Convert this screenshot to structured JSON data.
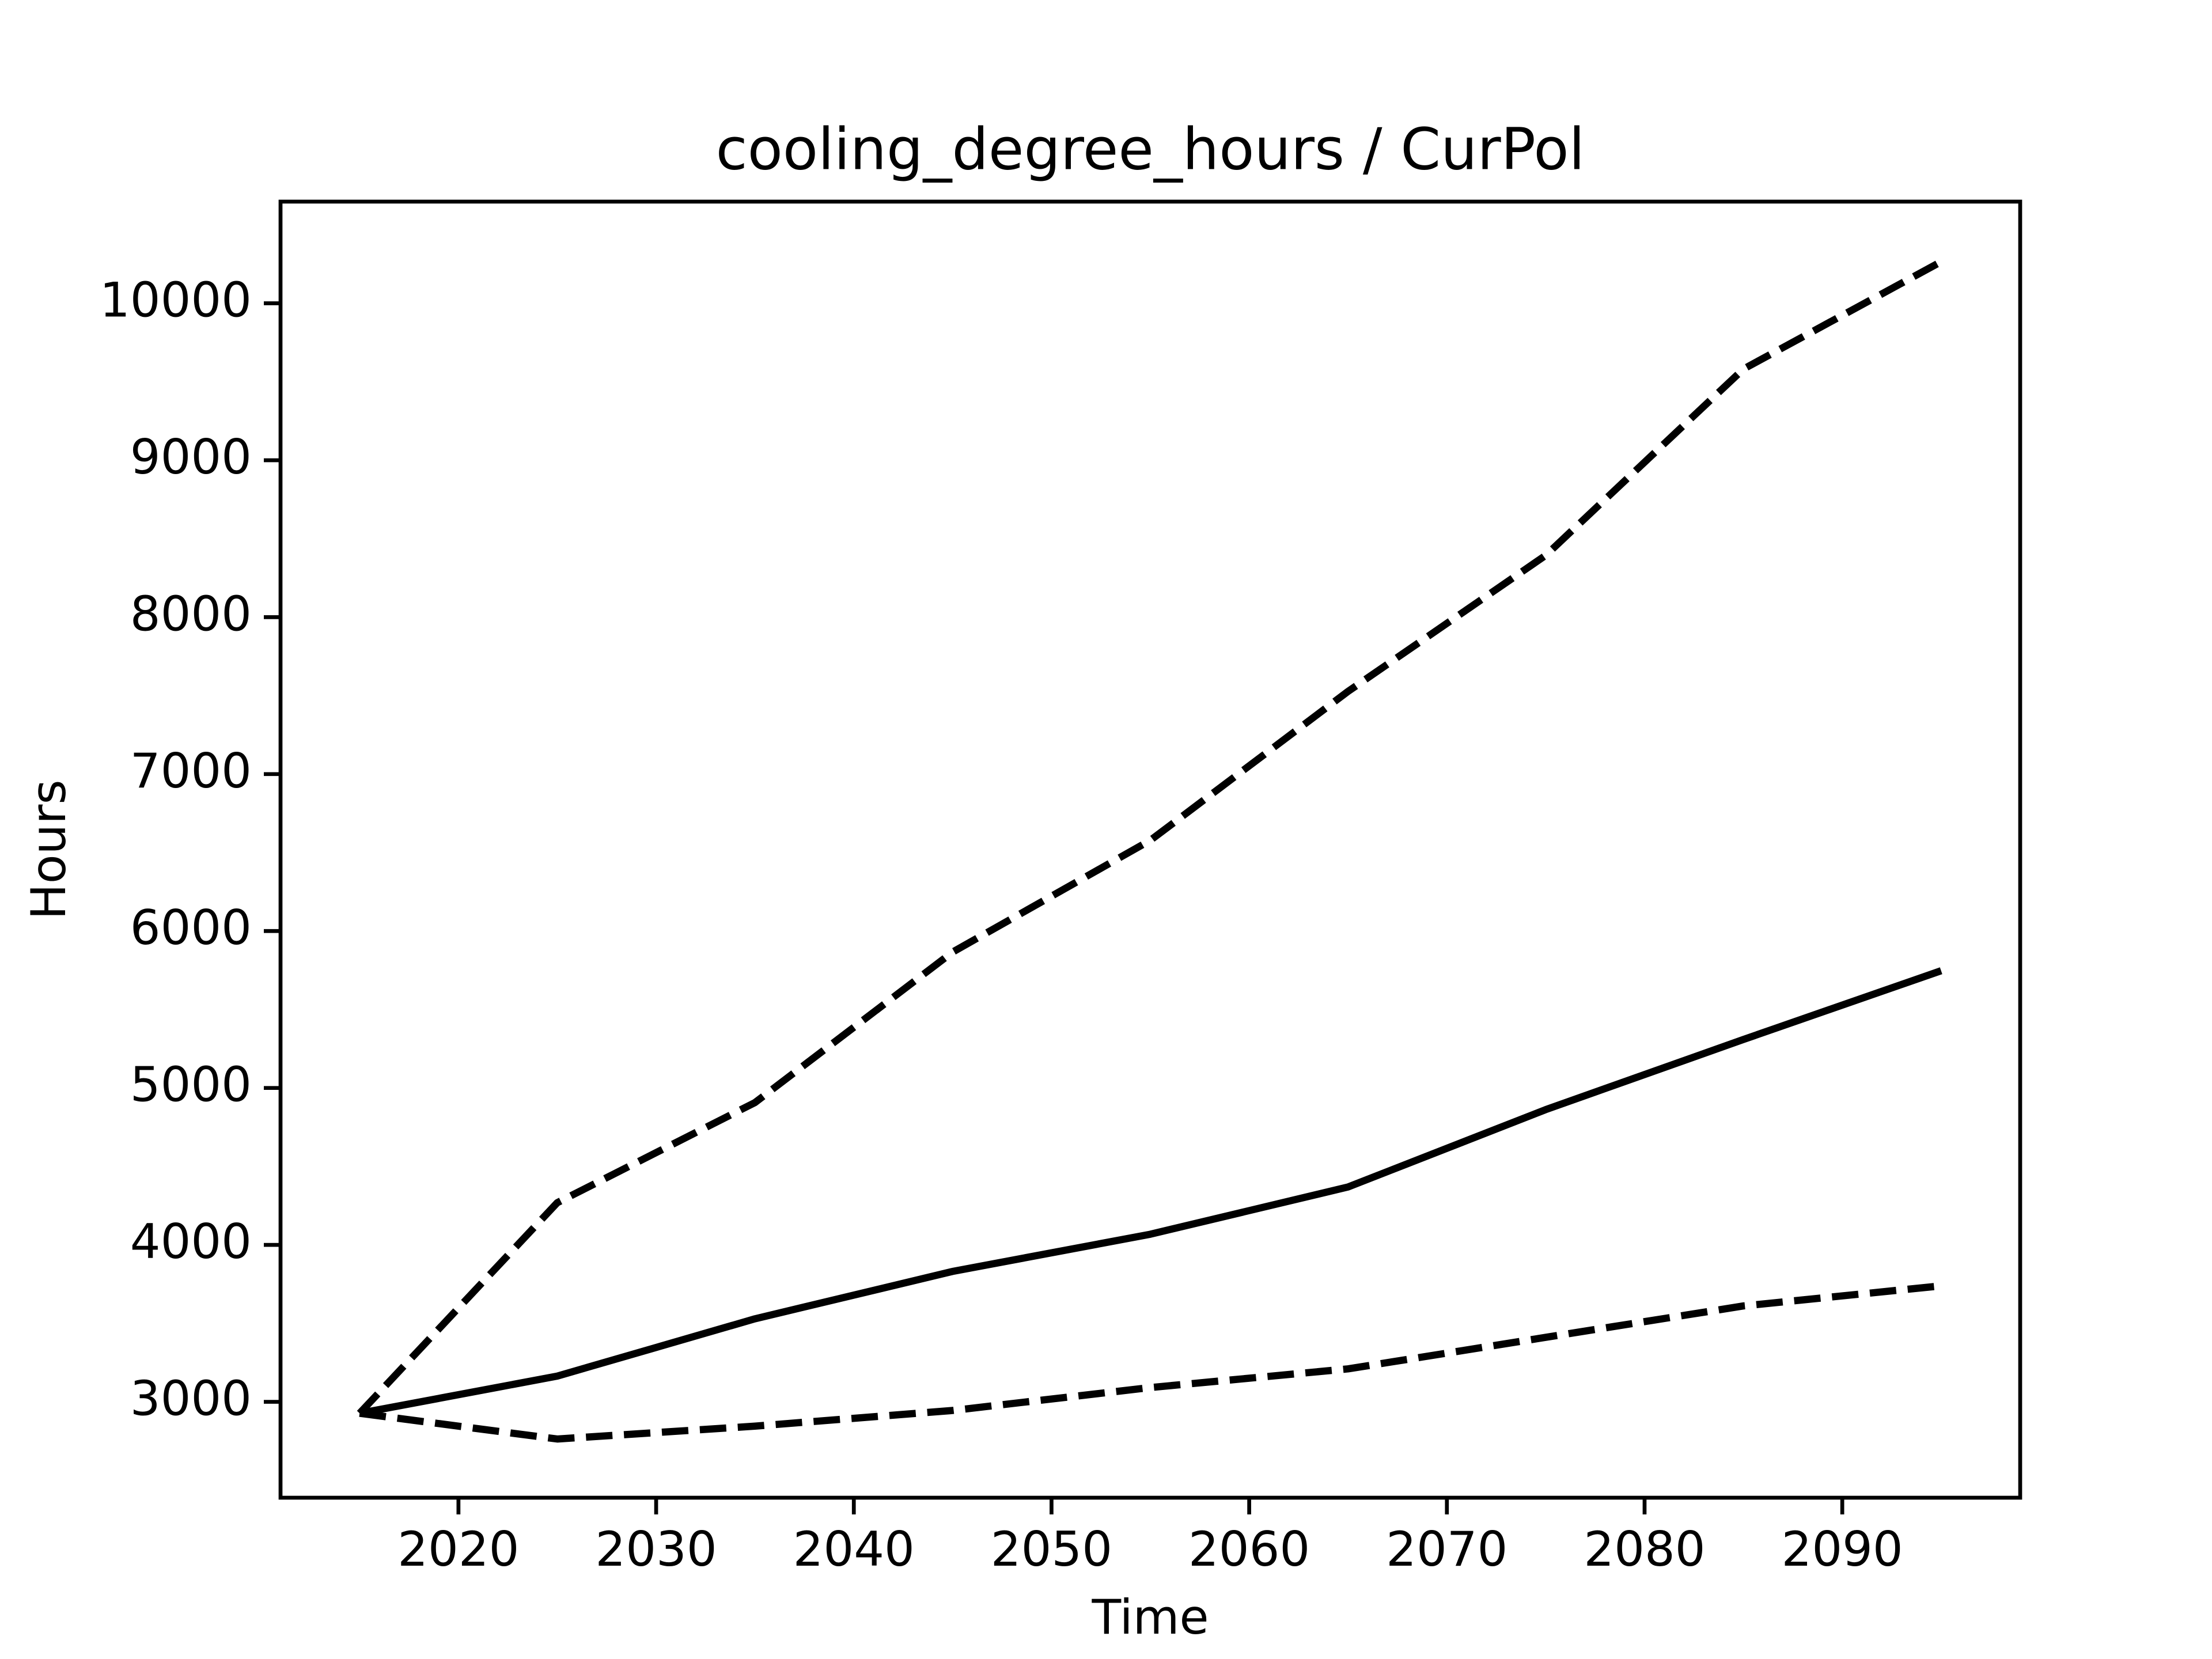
{
  "chart_data": {
    "type": "line",
    "title": "cooling_degree_hours / CurPol",
    "xlabel": "Time",
    "ylabel": "Hours",
    "x": [
      2015,
      2025,
      2035,
      2045,
      2055,
      2065,
      2075,
      2085,
      2095
    ],
    "series": [
      {
        "color": "#000000",
        "linestyle": "dashed",
        "values": [
          2927,
          4269,
          4907,
          5866,
          6578,
          7527,
          8394,
          9581,
          10265
        ]
      },
      {
        "color": "#000000",
        "linestyle": "solid",
        "values": [
          2927,
          3164,
          3529,
          3831,
          4068,
          4369,
          4862,
          5309,
          5747
        ]
      },
      {
        "color": "#000000",
        "linestyle": "dashed",
        "values": [
          2927,
          2763,
          2845,
          2945,
          3091,
          3210,
          3411,
          3611,
          3739
        ]
      }
    ],
    "xlim": [
      2011,
      2099
    ],
    "ylim": [
      2389,
      10648
    ],
    "xticks": [
      2020,
      2030,
      2040,
      2050,
      2060,
      2070,
      2080,
      2090
    ],
    "yticks": [
      3000,
      4000,
      5000,
      6000,
      7000,
      8000,
      9000,
      10000
    ],
    "grid": false
  }
}
